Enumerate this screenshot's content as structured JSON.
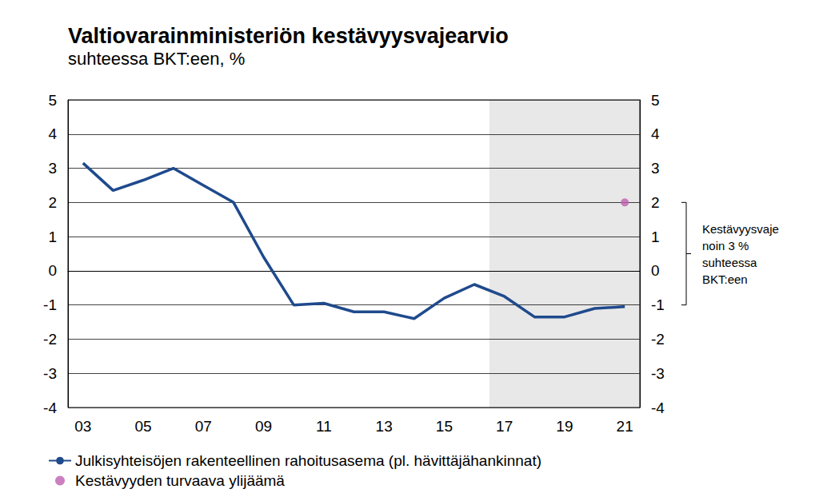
{
  "chart_data": {
    "type": "line",
    "title": "Valtiovarainministeriön kestävyysvajearvio",
    "subtitle": "suhteessa BKT:een, %",
    "xlim": [
      2002.5,
      2021.5
    ],
    "xticks": [
      {
        "value": 2003,
        "label": "03"
      },
      {
        "value": 2005,
        "label": "05"
      },
      {
        "value": 2007,
        "label": "07"
      },
      {
        "value": 2009,
        "label": "09"
      },
      {
        "value": 2011,
        "label": "11"
      },
      {
        "value": 2013,
        "label": "13"
      },
      {
        "value": 2015,
        "label": "15"
      },
      {
        "value": 2017,
        "label": "17"
      },
      {
        "value": 2019,
        "label": "19"
      },
      {
        "value": 2021,
        "label": "21"
      }
    ],
    "ylim": [
      -4,
      5
    ],
    "yticks": [
      -4,
      -3,
      -2,
      -1,
      0,
      1,
      2,
      3,
      4,
      5
    ],
    "y2lim": [
      -4,
      5
    ],
    "y2ticks": [
      -4,
      -3,
      -2,
      -1,
      0,
      1,
      2,
      3,
      4,
      5
    ],
    "grid": true,
    "legend": "bottom-left",
    "shaded_region": [
      2016.5,
      2021.5
    ],
    "series": [
      {
        "name": "Julkisyhteisöjen rakenteellinen rahoitusasema (pl. hävittäjähankinnat)",
        "type": "line",
        "color": "#1f4a8c",
        "x": [
          2003,
          2004,
          2005,
          2006,
          2007,
          2008,
          2009,
          2010,
          2011,
          2012,
          2013,
          2014,
          2015,
          2016,
          2017,
          2018,
          2019,
          2020,
          2021
        ],
        "values": [
          3.15,
          2.35,
          2.65,
          3.0,
          2.5,
          2.0,
          0.4,
          -1.0,
          -0.95,
          -1.2,
          -1.2,
          -1.4,
          -0.8,
          -0.4,
          -0.75,
          -1.35,
          -1.35,
          -1.1,
          -1.05
        ]
      },
      {
        "name": "Kestävyyden turvaava ylijäämä",
        "type": "scatter",
        "marker": "circle",
        "color": "#bf5fb0",
        "x": [
          2021
        ],
        "values": [
          2
        ]
      }
    ],
    "annotations": [
      {
        "text": "Kestävyysvaje\nnoin 3 %\nsuhteessa\nBKT:een",
        "y": [
          -1,
          2
        ]
      }
    ]
  }
}
